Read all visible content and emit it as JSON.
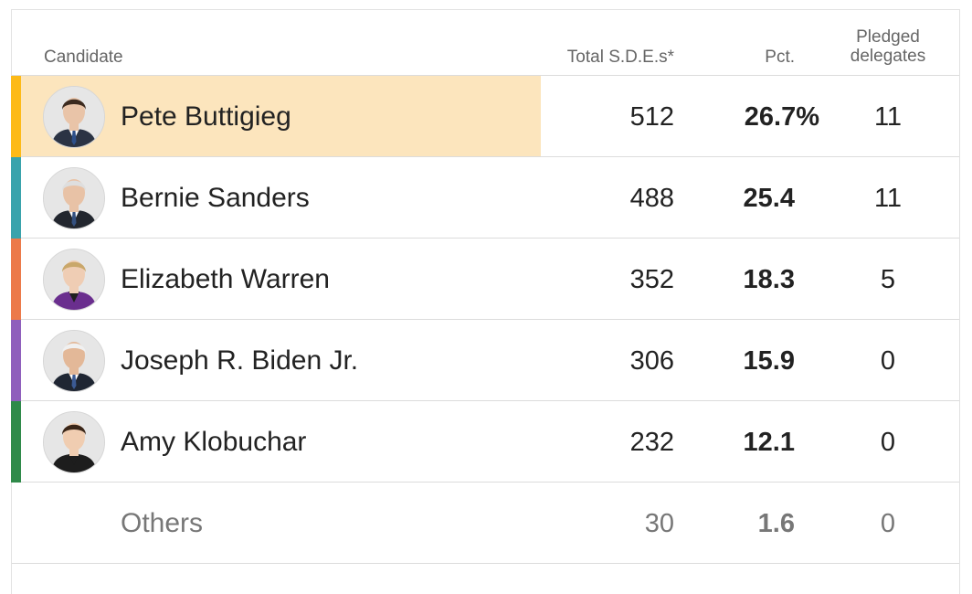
{
  "headers": {
    "candidate": "Candidate",
    "sdes": "Total S.D.E.s*",
    "pct": "Pct.",
    "pledged_line1": "Pledged",
    "pledged_line2": "delegates"
  },
  "chart_data": {
    "type": "table",
    "columns": [
      "Candidate",
      "Total S.D.E.s*",
      "Pct.",
      "Pledged delegates"
    ],
    "rows": [
      {
        "name": "Pete Buttigieg",
        "sdes": "512",
        "pct": "26.7%",
        "delegates": "11",
        "color": "#fdba18",
        "highlight": true,
        "avatar": "buttigieg-avatar"
      },
      {
        "name": "Bernie Sanders",
        "sdes": "488",
        "pct": "25.4",
        "delegates": "11",
        "color": "#39a3ac",
        "highlight": false,
        "avatar": "sanders-avatar"
      },
      {
        "name": "Elizabeth Warren",
        "sdes": "352",
        "pct": "18.3",
        "delegates": "5",
        "color": "#ec7a4a",
        "highlight": false,
        "avatar": "warren-avatar"
      },
      {
        "name": "Joseph R. Biden Jr.",
        "sdes": "306",
        "pct": "15.9",
        "delegates": "0",
        "color": "#8f5fbc",
        "highlight": false,
        "avatar": "biden-avatar"
      },
      {
        "name": "Amy Klobuchar",
        "sdes": "232",
        "pct": "12.1",
        "delegates": "0",
        "color": "#2f8a4a",
        "highlight": false,
        "avatar": "klobuchar-avatar"
      },
      {
        "name": "Others",
        "sdes": "30",
        "pct": "1.6",
        "delegates": "0",
        "color": "",
        "highlight": false,
        "avatar": ""
      }
    ]
  },
  "colors": {
    "highlight_bg": "#fce5bd",
    "border": "#dcdcdc",
    "header_text": "#666666",
    "others_text": "#777777"
  }
}
